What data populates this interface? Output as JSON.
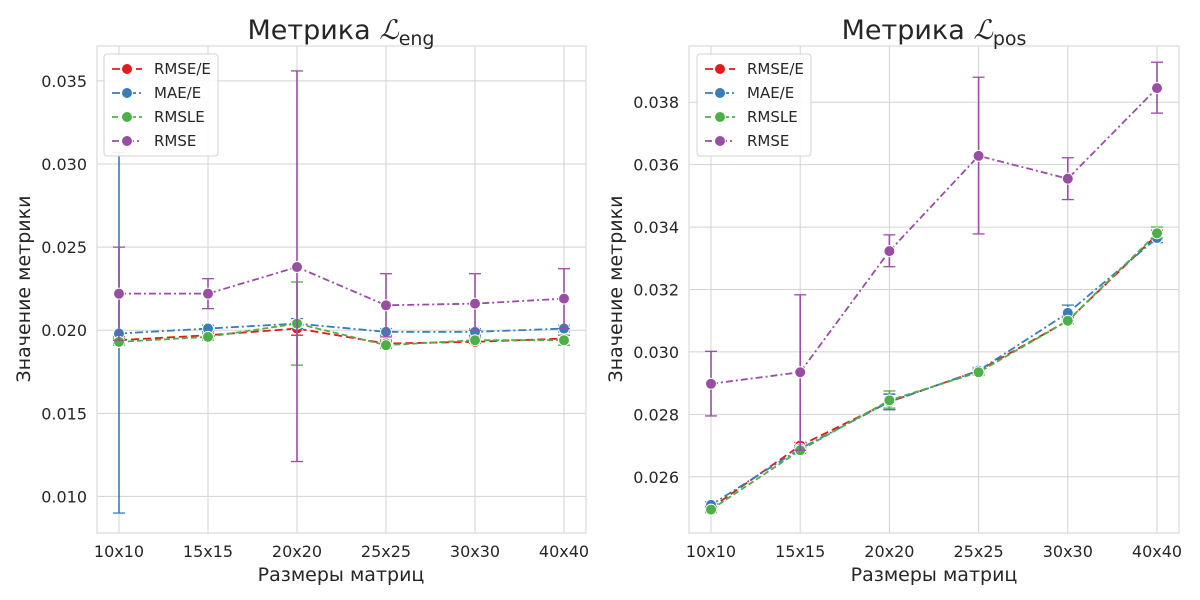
{
  "colors": {
    "rmse_e": "#e41a1c",
    "mae_e": "#377eb8",
    "rmsle": "#4daf4a",
    "rmse": "#984ea3",
    "grid": "#d3d3d3",
    "text": "#262626"
  },
  "chart_data": [
    {
      "type": "line",
      "title_main": "Метрика ",
      "title_symbol": "ℒ",
      "title_sub": "eng",
      "xlabel": "Размеры матриц",
      "ylabel": "Значение метрики",
      "categories": [
        "10x10",
        "15x15",
        "20x20",
        "25x25",
        "30x30",
        "40x40"
      ],
      "ylim": [
        0.0078,
        0.0371
      ],
      "yticks": [
        0.01,
        0.015,
        0.02,
        0.025,
        0.03,
        0.035
      ],
      "ytick_labels": [
        "0.010",
        "0.015",
        "0.020",
        "0.025",
        "0.030",
        "0.035"
      ],
      "grid": true,
      "legend_position": "top-left",
      "series": [
        {
          "name": "RMSE/E",
          "color_key": "rmse_e",
          "values": [
            0.0194,
            0.0197,
            0.0201,
            0.0192,
            0.0193,
            0.0195
          ],
          "err_low": [
            0.0192,
            0.0195,
            0.0197,
            0.019,
            0.0192,
            0.0193
          ],
          "err_high": [
            0.0196,
            0.0199,
            0.0205,
            0.0194,
            0.0195,
            0.0197
          ]
        },
        {
          "name": "MAE/E",
          "color_key": "mae_e",
          "values": [
            0.0198,
            0.0201,
            0.0204,
            0.0199,
            0.0199,
            0.0201
          ],
          "err_low": [
            0.009,
            0.0199,
            0.0201,
            0.0197,
            0.0197,
            0.0199
          ],
          "err_high": [
            0.0307,
            0.0203,
            0.0207,
            0.0201,
            0.0201,
            0.0203
          ]
        },
        {
          "name": "RMSLE",
          "color_key": "rmsle",
          "values": [
            0.0193,
            0.0196,
            0.0204,
            0.0191,
            0.0194,
            0.0194
          ],
          "err_low": [
            0.0191,
            0.0194,
            0.0179,
            0.0189,
            0.0192,
            0.0191
          ],
          "err_high": [
            0.0195,
            0.0198,
            0.0229,
            0.0193,
            0.0196,
            0.0197
          ]
        },
        {
          "name": "RMSE",
          "color_key": "rmse",
          "values": [
            0.0222,
            0.0222,
            0.0238,
            0.0215,
            0.0216,
            0.0219
          ],
          "err_low": [
            0.0194,
            0.0213,
            0.0121,
            0.0196,
            0.02,
            0.0201
          ],
          "err_high": [
            0.025,
            0.0231,
            0.0356,
            0.0234,
            0.0234,
            0.0237
          ]
        }
      ]
    },
    {
      "type": "line",
      "title_main": "Метрика ",
      "title_symbol": "ℒ",
      "title_sub": "pos",
      "xlabel": "Размеры матриц",
      "ylabel": "Значение метрики",
      "categories": [
        "10x10",
        "15x15",
        "20x20",
        "25x25",
        "30x30",
        "40x40"
      ],
      "ylim": [
        0.0242,
        0.0398
      ],
      "yticks": [
        0.026,
        0.028,
        0.03,
        0.032,
        0.034,
        0.036,
        0.038
      ],
      "ytick_labels": [
        "0.026",
        "0.028",
        "0.030",
        "0.032",
        "0.034",
        "0.036",
        "0.038"
      ],
      "grid": true,
      "legend_position": "top-left",
      "series": [
        {
          "name": "RMSE/E",
          "color_key": "rmse_e",
          "values": [
            0.025,
            0.027,
            0.0284,
            0.0294,
            0.031,
            0.03375
          ],
          "err_low": [
            0.0249,
            0.0269,
            0.02815,
            0.0293,
            0.0309,
            0.0336
          ],
          "err_high": [
            0.0251,
            0.0271,
            0.02865,
            0.0295,
            0.0311,
            0.0339
          ]
        },
        {
          "name": "MAE/E",
          "color_key": "mae_e",
          "values": [
            0.0251,
            0.0269,
            0.0284,
            0.0294,
            0.03125,
            0.03365
          ],
          "err_low": [
            0.025,
            0.0268,
            0.02815,
            0.0293,
            0.031,
            0.0335
          ],
          "err_high": [
            0.0252,
            0.027,
            0.02865,
            0.0295,
            0.0315,
            0.0338
          ]
        },
        {
          "name": "RMSLE",
          "color_key": "rmsle",
          "values": [
            0.02495,
            0.02685,
            0.02845,
            0.02935,
            0.031,
            0.0338
          ],
          "err_low": [
            0.02485,
            0.02675,
            0.0282,
            0.02925,
            0.0309,
            0.03365
          ],
          "err_high": [
            0.02505,
            0.02695,
            0.02875,
            0.02945,
            0.0311,
            0.034
          ]
        },
        {
          "name": "RMSE",
          "color_key": "rmse",
          "values": [
            0.02898,
            0.02935,
            0.03323,
            0.03628,
            0.03555,
            0.03845
          ],
          "err_low": [
            0.02795,
            0.02685,
            0.03273,
            0.03378,
            0.03488,
            0.03765
          ],
          "err_high": [
            0.03002,
            0.03183,
            0.03375,
            0.0388,
            0.03622,
            0.03928
          ]
        }
      ]
    }
  ]
}
